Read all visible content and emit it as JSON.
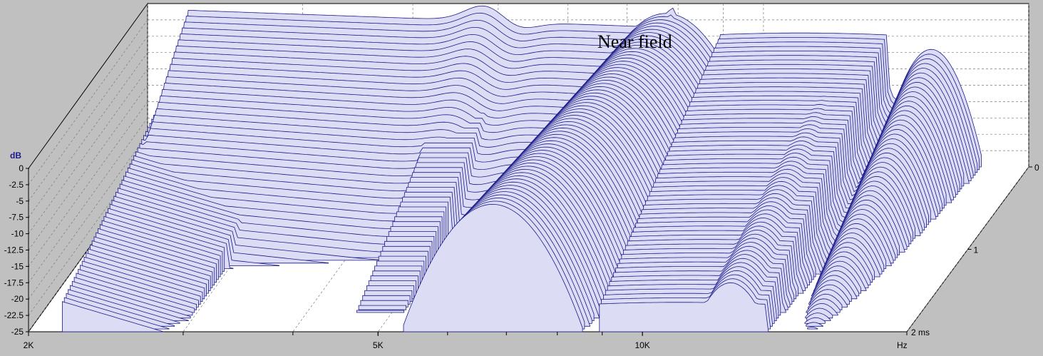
{
  "chart_data": {
    "type": "waterfall",
    "annotation": "Near field",
    "y_axis": {
      "unit_label": "dB",
      "range": [
        -25,
        0
      ],
      "ticks": [
        "0",
        "-2.5",
        "-5",
        "-7.5",
        "-10",
        "-12.5",
        "-15",
        "-17.5",
        "-20",
        "-22.5",
        "-25"
      ]
    },
    "x_axis": {
      "unit_label": "Hz",
      "scale": "log",
      "range": [
        2000,
        20000
      ],
      "labeled_ticks": [
        "2K",
        "5K",
        "10K"
      ]
    },
    "time_axis": {
      "unit_label": "2 ms",
      "range": [
        0,
        2
      ],
      "ticks": [
        "0",
        "1"
      ]
    },
    "colors": {
      "background": "#c0c0c0",
      "floor": "#ffffff",
      "slice_fill": "#dcdcf5",
      "slice_line": "#1a1a8a",
      "grid": "#7a7a7a",
      "axis_label": "#1a1a8a"
    },
    "features": [
      {
        "name": "main decay surface",
        "freq_range_hz": [
          2200,
          8100
        ],
        "peak_db": -0.5
      },
      {
        "name": "low-level ridge at 2.2 kHz",
        "freq_hz": 2250,
        "level_db": -9
      },
      {
        "name": "ridge near 4.9 kHz",
        "freq_hz": 4900,
        "level_db": -8
      },
      {
        "name": "resonance near 7.8 kHz",
        "freq_hz": 7800,
        "level_db": -1,
        "decay_ms": 2
      },
      {
        "name": "secondary peaks 10-13 kHz",
        "freq_range_hz": [
          9000,
          13500
        ],
        "level_db": -5
      }
    ]
  }
}
